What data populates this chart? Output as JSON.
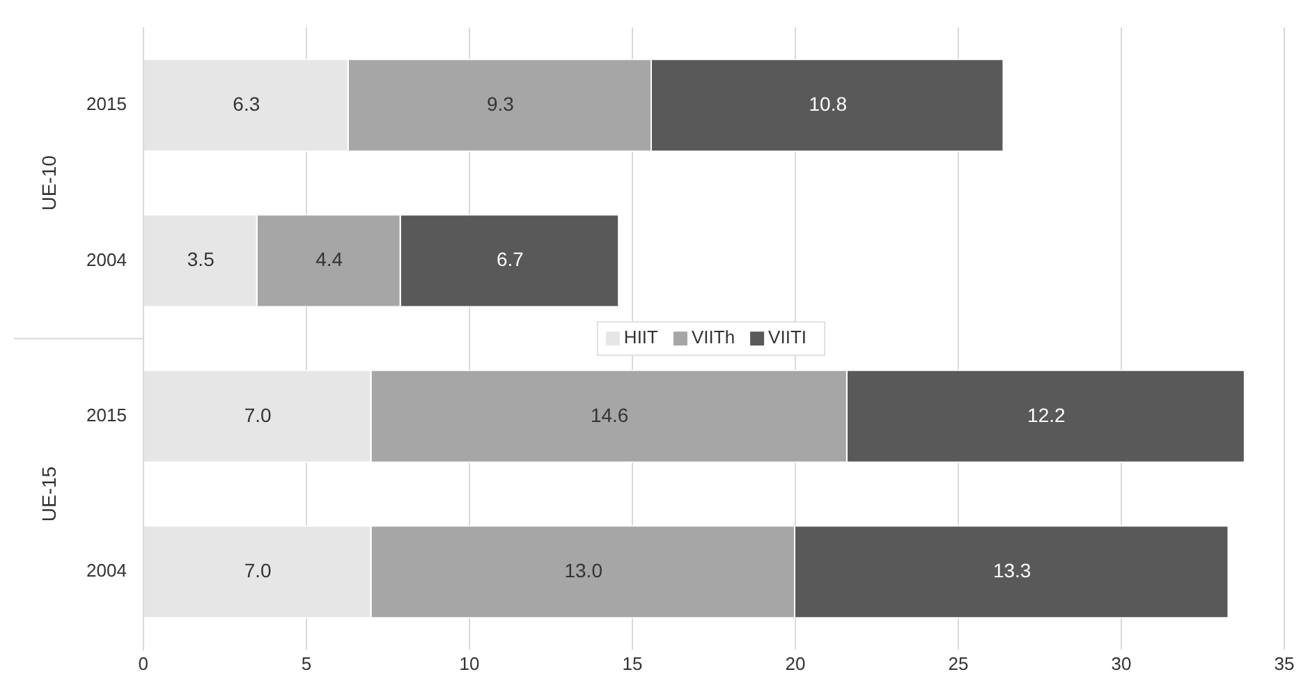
{
  "chart_data": {
    "type": "bar",
    "orientation": "horizontal",
    "stacked": true,
    "categories": [
      "2015",
      "2004",
      "2015",
      "2004"
    ],
    "series": [
      {
        "name": "HIIT",
        "color": "#e6e6e6",
        "values": [
          6.3,
          3.5,
          7.0,
          7.0
        ],
        "value_labels": [
          "6.3",
          "3.5",
          "7.0",
          "7.0"
        ]
      },
      {
        "name": "VIITh",
        "color": "#a6a6a6",
        "values": [
          9.3,
          4.4,
          14.6,
          13.0
        ],
        "value_labels": [
          "9.3",
          "4.4",
          "14.6",
          "13.0"
        ]
      },
      {
        "name": "VIITI",
        "color": "#595959",
        "values": [
          10.8,
          6.7,
          12.2,
          13.3
        ],
        "value_labels": [
          "10.8",
          "6.7",
          "12.2",
          "13.3"
        ]
      }
    ],
    "xlim": [
      0,
      35
    ],
    "xticks": [
      0,
      5,
      10,
      15,
      20,
      25,
      30,
      35
    ],
    "grid": "x",
    "legend": "center",
    "annotations": [
      "UE-10",
      "UE-15"
    ]
  }
}
